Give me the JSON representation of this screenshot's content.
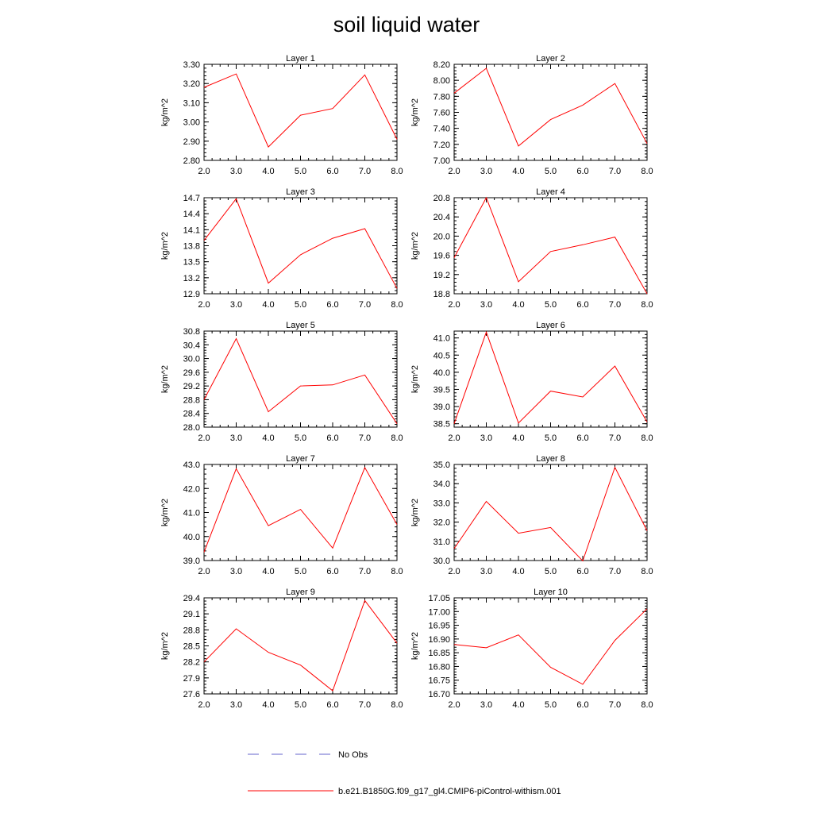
{
  "title": "soil liquid water",
  "colors": {
    "model": "#ff0000",
    "obs": "#6666cc"
  },
  "legend": [
    {
      "label": "No Obs",
      "style": "dashed"
    },
    {
      "label": "b.e21.B1850G.f09_g17_gl4.CMIP6-piControl-withism.001",
      "style": "solid"
    }
  ],
  "chart_data": [
    {
      "type": "line",
      "title": "Layer 1",
      "ylabel": "kg/m^2",
      "x": [
        2,
        3,
        4,
        5,
        6,
        7,
        8
      ],
      "xlim": [
        2,
        8
      ],
      "xticks": [
        "2.0",
        "3.0",
        "4.0",
        "5.0",
        "6.0",
        "7.0",
        "8.0"
      ],
      "ylim": [
        2.8,
        3.3
      ],
      "yticks": [
        "2.80",
        "2.90",
        "3.00",
        "3.10",
        "3.20",
        "3.30"
      ],
      "series": [
        {
          "name": "b.e21.B1850G.f09_g17_gl4.CMIP6-piControl-withism.001",
          "values": [
            3.18,
            3.25,
            2.87,
            3.035,
            3.07,
            3.245,
            2.91
          ]
        }
      ]
    },
    {
      "type": "line",
      "title": "Layer 2",
      "ylabel": "kg/m^2",
      "x": [
        2,
        3,
        4,
        5,
        6,
        7,
        8
      ],
      "xlim": [
        2,
        8
      ],
      "xticks": [
        "2.0",
        "3.0",
        "4.0",
        "5.0",
        "6.0",
        "7.0",
        "8.0"
      ],
      "ylim": [
        7.0,
        8.2
      ],
      "yticks": [
        "7.00",
        "7.20",
        "7.40",
        "7.60",
        "7.80",
        "8.00",
        "8.20"
      ],
      "series": [
        {
          "name": "b.e21.B1850G.f09_g17_gl4.CMIP6-piControl-withism.001",
          "values": [
            7.84,
            8.15,
            7.18,
            7.51,
            7.69,
            7.96,
            7.21
          ]
        }
      ]
    },
    {
      "type": "line",
      "title": "Layer 3",
      "ylabel": "kg/m^2",
      "x": [
        2,
        3,
        4,
        5,
        6,
        7,
        8
      ],
      "xlim": [
        2,
        8
      ],
      "xticks": [
        "2.0",
        "3.0",
        "4.0",
        "5.0",
        "6.0",
        "7.0",
        "8.0"
      ],
      "ylim": [
        12.9,
        14.7
      ],
      "yticks": [
        "12.9",
        "13.2",
        "13.5",
        "13.8",
        "14.1",
        "14.4",
        "14.7"
      ],
      "series": [
        {
          "name": "b.e21.B1850G.f09_g17_gl4.CMIP6-piControl-withism.001",
          "values": [
            13.9,
            14.68,
            13.1,
            13.63,
            13.94,
            14.12,
            13.0
          ]
        }
      ]
    },
    {
      "type": "line",
      "title": "Layer 4",
      "ylabel": "kg/m^2",
      "x": [
        2,
        3,
        4,
        5,
        6,
        7,
        8
      ],
      "xlim": [
        2,
        8
      ],
      "xticks": [
        "2.0",
        "3.0",
        "4.0",
        "5.0",
        "6.0",
        "7.0",
        "8.0"
      ],
      "ylim": [
        18.8,
        20.8
      ],
      "yticks": [
        "18.8",
        "19.2",
        "19.6",
        "20.0",
        "20.4",
        "20.8"
      ],
      "series": [
        {
          "name": "b.e21.B1850G.f09_g17_gl4.CMIP6-piControl-withism.001",
          "values": [
            19.55,
            20.8,
            19.05,
            19.68,
            19.82,
            19.98,
            18.8
          ]
        }
      ]
    },
    {
      "type": "line",
      "title": "Layer 5",
      "ylabel": "kg/m^2",
      "x": [
        2,
        3,
        4,
        5,
        6,
        7,
        8
      ],
      "xlim": [
        2,
        8
      ],
      "xticks": [
        "2.0",
        "3.0",
        "4.0",
        "5.0",
        "6.0",
        "7.0",
        "8.0"
      ],
      "ylim": [
        28.0,
        30.8
      ],
      "yticks": [
        "28.0",
        "28.4",
        "28.8",
        "29.2",
        "29.6",
        "30.0",
        "30.4",
        "30.8"
      ],
      "series": [
        {
          "name": "b.e21.B1850G.f09_g17_gl4.CMIP6-piControl-withism.001",
          "values": [
            28.8,
            30.58,
            28.45,
            29.2,
            29.23,
            29.52,
            28.1
          ]
        }
      ]
    },
    {
      "type": "line",
      "title": "Layer 6",
      "ylabel": "kg/m^2",
      "x": [
        2,
        3,
        4,
        5,
        6,
        7,
        8
      ],
      "xlim": [
        2,
        8
      ],
      "xticks": [
        "2.0",
        "3.0",
        "4.0",
        "5.0",
        "6.0",
        "7.0",
        "8.0"
      ],
      "ylim": [
        38.4,
        41.2
      ],
      "yticks": [
        "38.5",
        "39.0",
        "39.5",
        "40.0",
        "40.5",
        "41.0"
      ],
      "series": [
        {
          "name": "b.e21.B1850G.f09_g17_gl4.CMIP6-piControl-withism.001",
          "values": [
            38.5,
            41.17,
            38.52,
            39.45,
            39.28,
            40.18,
            38.55
          ]
        }
      ]
    },
    {
      "type": "line",
      "title": "Layer 7",
      "ylabel": "kg/m^2",
      "x": [
        2,
        3,
        4,
        5,
        6,
        7,
        8
      ],
      "xlim": [
        2,
        8
      ],
      "xticks": [
        "2.0",
        "3.0",
        "4.0",
        "5.0",
        "6.0",
        "7.0",
        "8.0"
      ],
      "ylim": [
        39.0,
        43.0
      ],
      "yticks": [
        "39.0",
        "40.0",
        "41.0",
        "42.0",
        "43.0"
      ],
      "series": [
        {
          "name": "b.e21.B1850G.f09_g17_gl4.CMIP6-piControl-withism.001",
          "values": [
            39.35,
            42.82,
            40.45,
            41.13,
            39.52,
            42.87,
            40.5
          ]
        }
      ]
    },
    {
      "type": "line",
      "title": "Layer 8",
      "ylabel": "kg/m^2",
      "x": [
        2,
        3,
        4,
        5,
        6,
        7,
        8
      ],
      "xlim": [
        2,
        8
      ],
      "xticks": [
        "2.0",
        "3.0",
        "4.0",
        "5.0",
        "6.0",
        "7.0",
        "8.0"
      ],
      "ylim": [
        30.0,
        35.0
      ],
      "yticks": [
        "30.0",
        "31.0",
        "32.0",
        "33.0",
        "34.0",
        "35.0"
      ],
      "series": [
        {
          "name": "b.e21.B1850G.f09_g17_gl4.CMIP6-piControl-withism.001",
          "values": [
            30.62,
            33.08,
            31.42,
            31.72,
            29.98,
            34.85,
            31.55
          ]
        }
      ]
    },
    {
      "type": "line",
      "title": "Layer 9",
      "ylabel": "kg/m^2",
      "x": [
        2,
        3,
        4,
        5,
        6,
        7,
        8
      ],
      "xlim": [
        2,
        8
      ],
      "xticks": [
        "2.0",
        "3.0",
        "4.0",
        "5.0",
        "6.0",
        "7.0",
        "8.0"
      ],
      "ylim": [
        27.6,
        29.4
      ],
      "yticks": [
        "27.6",
        "27.9",
        "28.2",
        "28.5",
        "28.8",
        "29.1",
        "29.4"
      ],
      "series": [
        {
          "name": "b.e21.B1850G.f09_g17_gl4.CMIP6-piControl-withism.001",
          "values": [
            28.2,
            28.82,
            28.38,
            28.14,
            27.66,
            29.35,
            28.55
          ]
        }
      ]
    },
    {
      "type": "line",
      "title": "Layer 10",
      "ylabel": "kg/m^2",
      "x": [
        2,
        3,
        4,
        5,
        6,
        7,
        8
      ],
      "xlim": [
        2,
        8
      ],
      "xticks": [
        "2.0",
        "3.0",
        "4.0",
        "5.0",
        "6.0",
        "7.0",
        "8.0"
      ],
      "ylim": [
        16.7,
        17.05
      ],
      "yticks": [
        "16.70",
        "16.75",
        "16.80",
        "16.85",
        "16.90",
        "16.95",
        "17.00",
        "17.05"
      ],
      "series": [
        {
          "name": "b.e21.B1850G.f09_g17_gl4.CMIP6-piControl-withism.001",
          "values": [
            16.88,
            16.868,
            16.915,
            16.797,
            16.735,
            16.895,
            17.01
          ]
        }
      ]
    }
  ]
}
